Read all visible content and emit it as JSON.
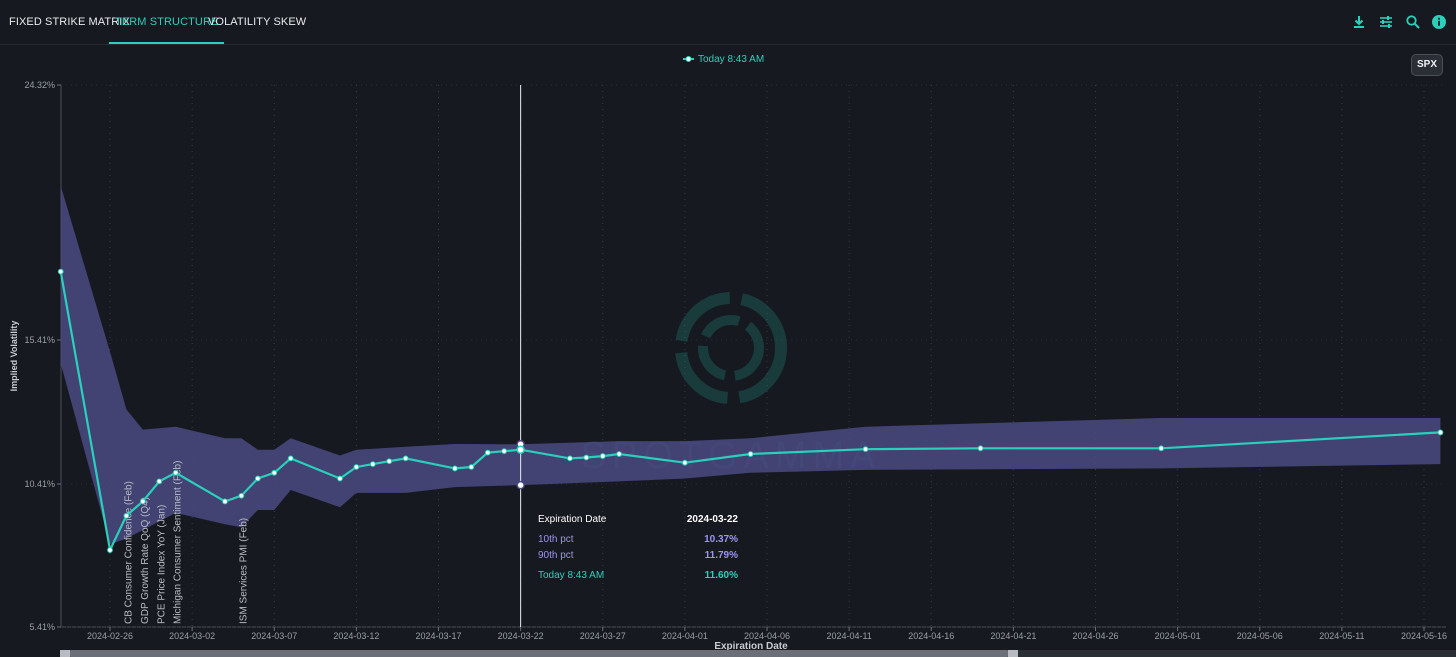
{
  "tabs": [
    {
      "label": "FIXED STRIKE MATRIX",
      "active": false
    },
    {
      "label": "TERM STRUCTURE",
      "active": true
    },
    {
      "label": "VOLATILITY SKEW",
      "active": false
    }
  ],
  "toolbar_icons": [
    "download-icon",
    "sliders-icon",
    "search-icon",
    "info-icon"
  ],
  "ticker_button": "SPX",
  "watermark": "SPOTGAMMA",
  "colors": {
    "accent": "#2ad0bb",
    "band": "#4a4a82",
    "pct": "#9b94f0",
    "background": "#16191f"
  },
  "tooltip": {
    "header_label": "Expiration Date",
    "header_value": "2024-03-22",
    "rows": [
      {
        "label": "10th pct",
        "value": "10.37%"
      },
      {
        "label": "90th pct",
        "value": "11.79%"
      },
      {
        "label": "Today 8:43 AM",
        "value": "11.60%"
      }
    ]
  },
  "chart_data": {
    "type": "line",
    "title": "",
    "legend": [
      {
        "name": "Today 8:43 AM",
        "placement": "top-center"
      }
    ],
    "xlabel": "Expiration Date",
    "ylabel": "Implied Volatility",
    "y_ticks": [
      "24.32%",
      "15.41%",
      "10.41%",
      "5.41%"
    ],
    "x_ticks": [
      "2024-02-26",
      "2024-03-02",
      "2024-03-07",
      "2024-03-12",
      "2024-03-17",
      "2024-03-22",
      "2024-03-27",
      "2024-04-01",
      "2024-04-06",
      "2024-04-11",
      "2024-04-16",
      "2024-04-21",
      "2024-04-26",
      "2024-05-01",
      "2024-05-06",
      "2024-05-11",
      "2024-05-16"
    ],
    "x_range": [
      "2024-02-26",
      "2024-05-16"
    ],
    "series": [
      {
        "name": "Today 8:43 AM",
        "points": [
          {
            "x": "2024-02-23",
            "y": 17.8
          },
          {
            "x": "2024-02-26",
            "y": 8.1
          },
          {
            "x": "2024-02-27",
            "y": 9.3
          },
          {
            "x": "2024-02-28",
            "y": 9.8
          },
          {
            "x": "2024-02-29",
            "y": 10.5
          },
          {
            "x": "2024-03-01",
            "y": 10.8
          },
          {
            "x": "2024-03-04",
            "y": 9.8
          },
          {
            "x": "2024-03-05",
            "y": 10.0
          },
          {
            "x": "2024-03-06",
            "y": 10.6
          },
          {
            "x": "2024-03-07",
            "y": 10.8
          },
          {
            "x": "2024-03-08",
            "y": 11.3
          },
          {
            "x": "2024-03-11",
            "y": 10.6
          },
          {
            "x": "2024-03-12",
            "y": 11.0
          },
          {
            "x": "2024-03-13",
            "y": 11.1
          },
          {
            "x": "2024-03-14",
            "y": 11.2
          },
          {
            "x": "2024-03-15",
            "y": 11.3
          },
          {
            "x": "2024-03-18",
            "y": 10.95
          },
          {
            "x": "2024-03-19",
            "y": 11.0
          },
          {
            "x": "2024-03-20",
            "y": 11.5
          },
          {
            "x": "2024-03-21",
            "y": 11.55
          },
          {
            "x": "2024-03-22",
            "y": 11.6
          },
          {
            "x": "2024-03-25",
            "y": 11.3
          },
          {
            "x": "2024-03-26",
            "y": 11.33
          },
          {
            "x": "2024-03-27",
            "y": 11.38
          },
          {
            "x": "2024-03-28",
            "y": 11.45
          },
          {
            "x": "2024-04-01",
            "y": 11.15
          },
          {
            "x": "2024-04-05",
            "y": 11.45
          },
          {
            "x": "2024-04-12",
            "y": 11.62
          },
          {
            "x": "2024-04-19",
            "y": 11.65
          },
          {
            "x": "2024-04-30",
            "y": 11.65
          },
          {
            "x": "2024-05-17",
            "y": 12.2
          }
        ]
      }
    ],
    "band": {
      "name": "10th–90th pct",
      "points": [
        {
          "x": "2024-02-23",
          "lo": 14.6,
          "hi": 20.8
        },
        {
          "x": "2024-02-26",
          "lo": 8.3,
          "hi": 15.0
        },
        {
          "x": "2024-02-27",
          "lo": 8.5,
          "hi": 13.0
        },
        {
          "x": "2024-02-28",
          "lo": 8.8,
          "hi": 12.3
        },
        {
          "x": "2024-03-01",
          "lo": 9.4,
          "hi": 12.4
        },
        {
          "x": "2024-03-04",
          "lo": 9.0,
          "hi": 12.0
        },
        {
          "x": "2024-03-05",
          "lo": 8.9,
          "hi": 12.0
        },
        {
          "x": "2024-03-06",
          "lo": 9.5,
          "hi": 11.6
        },
        {
          "x": "2024-03-07",
          "lo": 9.5,
          "hi": 11.6
        },
        {
          "x": "2024-03-08",
          "lo": 10.2,
          "hi": 12.0
        },
        {
          "x": "2024-03-11",
          "lo": 9.6,
          "hi": 11.4
        },
        {
          "x": "2024-03-12",
          "lo": 10.1,
          "hi": 11.6
        },
        {
          "x": "2024-03-15",
          "lo": 10.1,
          "hi": 11.7
        },
        {
          "x": "2024-03-18",
          "lo": 10.3,
          "hi": 11.8
        },
        {
          "x": "2024-03-22",
          "lo": 10.37,
          "hi": 11.79
        },
        {
          "x": "2024-03-28",
          "lo": 10.5,
          "hi": 11.9
        },
        {
          "x": "2024-04-01",
          "lo": 10.6,
          "hi": 11.9
        },
        {
          "x": "2024-04-05",
          "lo": 10.8,
          "hi": 12.0
        },
        {
          "x": "2024-04-12",
          "lo": 10.9,
          "hi": 12.4
        },
        {
          "x": "2024-04-30",
          "lo": 10.95,
          "hi": 12.7
        },
        {
          "x": "2024-05-17",
          "lo": 11.1,
          "hi": 12.7
        }
      ]
    },
    "hover": {
      "x": "2024-03-22",
      "lo": 10.37,
      "hi": 11.79,
      "y": 11.6
    },
    "event_annotations": [
      {
        "x": "2024-02-27",
        "label": "CB Consumer Confidence (Feb)"
      },
      {
        "x": "2024-02-28",
        "label": "GDP Growth Rate QoQ (Q4)"
      },
      {
        "x": "2024-02-29",
        "label": "PCE Price Index YoY (Jan)"
      },
      {
        "x": "2024-03-01",
        "label": "Michigan Consumer Sentiment (Feb)"
      },
      {
        "x": "2024-03-05",
        "label": "ISM Services PMI (Feb)"
      }
    ],
    "grid": true
  }
}
